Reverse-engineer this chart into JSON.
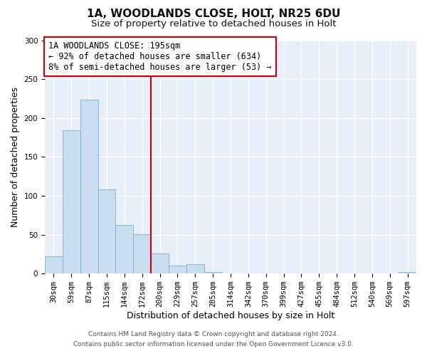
{
  "title": "1A, WOODLANDS CLOSE, HOLT, NR25 6DU",
  "subtitle": "Size of property relative to detached houses in Holt",
  "xlabel": "Distribution of detached houses by size in Holt",
  "ylabel": "Number of detached properties",
  "bin_labels": [
    "30sqm",
    "59sqm",
    "87sqm",
    "115sqm",
    "144sqm",
    "172sqm",
    "200sqm",
    "229sqm",
    "257sqm",
    "285sqm",
    "314sqm",
    "342sqm",
    "370sqm",
    "399sqm",
    "427sqm",
    "455sqm",
    "484sqm",
    "512sqm",
    "540sqm",
    "569sqm",
    "597sqm"
  ],
  "bin_values": [
    22,
    184,
    224,
    108,
    62,
    51,
    26,
    10,
    12,
    2,
    0,
    0,
    0,
    0,
    0,
    0,
    0,
    0,
    0,
    0,
    2
  ],
  "bar_color": "#c9ddf0",
  "bar_edge_color": "#7bafd4",
  "vline_color": "#cc0000",
  "vline_bin": 6,
  "annotation_box_color": "#cc0000",
  "annotation_text_line1": "1A WOODLANDS CLOSE: 195sqm",
  "annotation_text_line2": "← 92% of detached houses are smaller (634)",
  "annotation_text_line3": "8% of semi-detached houses are larger (53) →",
  "ylim": [
    0,
    300
  ],
  "yticks": [
    0,
    50,
    100,
    150,
    200,
    250,
    300
  ],
  "footer_line1": "Contains HM Land Registry data © Crown copyright and database right 2024.",
  "footer_line2": "Contains public sector information licensed under the Open Government Licence v3.0.",
  "background_color": "#e8eef8",
  "plot_bg_color": "#e8eef8",
  "grid_color": "#ffffff",
  "title_fontsize": 11,
  "subtitle_fontsize": 9.5,
  "axis_label_fontsize": 9,
  "tick_fontsize": 7.5,
  "annotation_fontsize": 8.5,
  "footer_fontsize": 6.5
}
